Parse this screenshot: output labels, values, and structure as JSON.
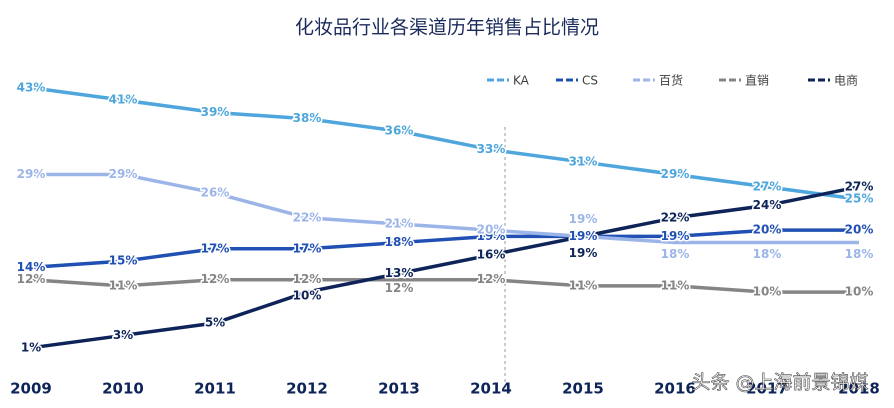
{
  "chart_data": {
    "type": "line",
    "title": "化妆品行业各渠道历年销售占比情况",
    "categories": [
      "2009",
      "2010",
      "2011",
      "2012",
      "2013",
      "2014",
      "2015",
      "2016",
      "2017",
      "2018"
    ],
    "ylim": [
      0,
      45
    ],
    "series": [
      {
        "name": "KA",
        "color": "#4ea6dc",
        "values": [
          43,
          41,
          39,
          38,
          36,
          33,
          31,
          29,
          27,
          25
        ],
        "value_labels": [
          "43%",
          "41%",
          "39%",
          "38%",
          "36%",
          "33%",
          "31%",
          "29%",
          "27%",
          "25%"
        ]
      },
      {
        "name": "CS",
        "color": "#2150b4",
        "values": [
          14,
          15,
          17,
          17,
          18,
          19,
          19,
          19,
          20,
          20
        ],
        "value_labels": [
          "14%",
          "15%",
          "17%",
          "17%",
          "18%",
          "19%",
          "19%",
          "19%",
          "20%",
          "20%"
        ]
      },
      {
        "name": "百货",
        "color": "#9cb5e9",
        "values": [
          29,
          29,
          26,
          22,
          21,
          20,
          19,
          18,
          18,
          18
        ],
        "value_labels": [
          "29%",
          "29%",
          "26%",
          "22%",
          "21%",
          "20%",
          "19%",
          "18%",
          "18%",
          "18%"
        ]
      },
      {
        "name": "直销",
        "color": "#858585",
        "values": [
          12,
          11,
          12,
          12,
          12,
          12,
          11,
          11,
          10,
          10
        ],
        "value_labels": [
          "12%",
          "11%",
          "12%",
          "12%",
          "12%",
          "12%",
          "11%",
          "11%",
          "10%",
          "10%"
        ]
      },
      {
        "name": "电商",
        "color": "#0e2459",
        "values": [
          1,
          3,
          5,
          10,
          13,
          16,
          19,
          22,
          24,
          27
        ],
        "value_labels": [
          "1%",
          "3%",
          "5%",
          "10%",
          "13%",
          "16%",
          "19%",
          "22%",
          "24%",
          "27%"
        ]
      }
    ],
    "watermark": "头条 @上海前景锦媒"
  }
}
